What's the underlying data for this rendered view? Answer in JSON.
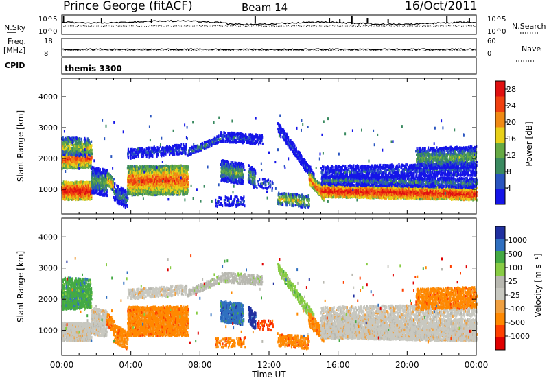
{
  "header": {
    "station": "Prince George (fitACF)",
    "beam": "Beam 14",
    "date": "16/Oct/2011"
  },
  "left_labels": {
    "nsky": "N.Sky",
    "freq": "Freq.",
    "freq_unit": "[MHz]",
    "cpid": "CPID"
  },
  "right_labels": {
    "nsearch": "N.Search",
    "nave": "Nave"
  },
  "cpid_text": "themis 3300",
  "colors": {
    "power": [
      "#1515e8",
      "#2a55c0",
      "#3a8a60",
      "#66aa44",
      "#e8d018",
      "#f08a14",
      "#f04010",
      "#e01010"
    ],
    "velocity": [
      "#e00000",
      "#ff4000",
      "#ff8800",
      "#f0a040",
      "#c8c8c0",
      "#b8b8b0",
      "#88cc44",
      "#44aa44",
      "#3070c0",
      "#2030a0"
    ]
  },
  "chart_data": [
    {
      "type": "line",
      "name": "nsky-nsearch",
      "ylabel": "N.Sky",
      "y2label": "N.Search",
      "yticks": [
        "10^5",
        "10^0"
      ],
      "y2ticks": [
        "10^5",
        "10^0"
      ]
    },
    {
      "type": "line",
      "name": "freq-nave",
      "ylabel": "Freq. [MHz]",
      "yticks": [
        18,
        8
      ],
      "y2label": "Nave",
      "y2ticks": [
        60,
        0
      ]
    },
    {
      "type": "heatmap",
      "name": "power",
      "xlabel": "",
      "ylabel": "Slant Range [km]",
      "xlim": [
        0,
        24
      ],
      "ylim": [
        200,
        4600
      ],
      "xticks": [
        "00:00",
        "04:00",
        "08:00",
        "12:00",
        "16:00",
        "20:00",
        "00:00"
      ],
      "yticks": [
        1000,
        2000,
        3000,
        4000
      ],
      "colorbar": {
        "label": "Power [dB]",
        "ticks": [
          4,
          8,
          12,
          16,
          20,
          24,
          28
        ],
        "range": [
          0,
          30
        ]
      }
    },
    {
      "type": "heatmap",
      "name": "velocity",
      "xlabel": "Time UT",
      "ylabel": "Slant Range [km]",
      "xlim": [
        0,
        24
      ],
      "ylim": [
        200,
        4600
      ],
      "xticks": [
        "00:00",
        "04:00",
        "08:00",
        "12:00",
        "16:00",
        "20:00",
        "00:00"
      ],
      "yticks": [
        1000,
        2000,
        3000,
        4000
      ],
      "colorbar": {
        "label": "Velocity [m s⁻¹]",
        "ticks": [
          1000,
          500,
          100,
          25,
          -25,
          -100,
          -500,
          -1000
        ]
      }
    }
  ]
}
